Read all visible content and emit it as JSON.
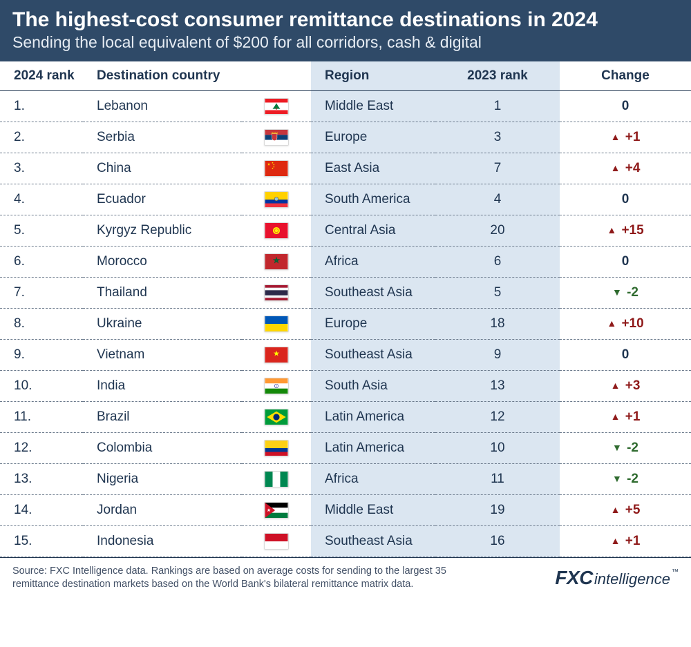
{
  "header": {
    "title": "The highest-cost consumer remittance destinations in 2024",
    "subtitle": "Sending the local equivalent of $200 for all corridors, cash & digital"
  },
  "columns": {
    "rank24": "2024 rank",
    "country": "Destination country",
    "region": "Region",
    "rank23": "2023 rank",
    "change": "Change"
  },
  "change_style": {
    "up_color": "#8f1a1a",
    "down_color": "#2f6b2f",
    "zero_color": "#1f3550",
    "up_symbol": "▲",
    "down_symbol": "▼"
  },
  "highlight": {
    "column": "rank23",
    "bg": "rgba(184,205,227,0.5)"
  },
  "rows": [
    {
      "rank24": "1.",
      "country": "Lebanon",
      "flag_svg": "<svg viewBox='0 0 36 24'><rect width='36' height='24' fill='#fff'/><rect width='36' height='6' fill='#ed1c24'/><rect y='18' width='36' height='6' fill='#ed1c24'/><path d='M18 7 L21 12 L24 16 L12 16 L15 12 Z' fill='#007a3d'/><rect x='17' y='14' width='2' height='3' fill='#7b4b2a'/></svg>",
      "region": "Middle East",
      "rank23": "1",
      "change": {
        "dir": "zero",
        "text": "0"
      }
    },
    {
      "rank24": "2.",
      "country": "Serbia",
      "flag_svg": "<svg viewBox='0 0 36 24'><rect width='36' height='8' fill='#c6363c'/><rect y='8' width='36' height='8' fill='#0c4076'/><rect y='16' width='36' height='8' fill='#fff'/><g transform='translate(11,6)'><path d='M0 0h8v7a4 4 0 01-8 0z' fill='#c6363c' stroke='#fff' stroke-width='0.5'/><path d='M-1 -1l2 -1 2 1 2 -1 2 1 2 -1v2h-10z' fill='#f7c600'/></g></svg>",
      "region": "Europe",
      "rank23": "3",
      "change": {
        "dir": "up",
        "text": "+1"
      }
    },
    {
      "rank24": "3.",
      "country": "China",
      "flag_svg": "<svg viewBox='0 0 36 24'><rect width='36' height='24' fill='#de2910'/><polygon points='6,3 7.4,7.3 3.7,4.6 8.3,4.6 4.6,7.3' fill='#ffde00'/><circle cx='12' cy='3' r='0.9' fill='#ffde00'/><circle cx='14' cy='6' r='0.9' fill='#ffde00'/><circle cx='14' cy='9.5' r='0.9' fill='#ffde00'/><circle cx='12' cy='12' r='0.9' fill='#ffde00'/></svg>",
      "region": "East Asia",
      "rank23": "7",
      "change": {
        "dir": "up",
        "text": "+4"
      }
    },
    {
      "rank24": "4.",
      "country": "Ecuador",
      "flag_svg": "<svg viewBox='0 0 36 24'><rect width='36' height='12' fill='#ffd100'/><rect y='12' width='36' height='6' fill='#0033a0'/><rect y='18' width='36' height='6' fill='#ef3340'/><circle cx='18' cy='11' r='3' fill='#8ec6e6' stroke='#7b5c20' stroke-width='0.7'/></svg>",
      "region": "South America",
      "rank23": "4",
      "change": {
        "dir": "zero",
        "text": "0"
      }
    },
    {
      "rank24": "5.",
      "country": "Kyrgyz Republic",
      "flag_svg": "<svg viewBox='0 0 36 24'><rect width='36' height='24' fill='#e8112d'/><circle cx='18' cy='12' r='5.5' fill='#ffef00'/><circle cx='18' cy='12' r='3.2' fill='#e8112d'/><circle cx='18' cy='12' r='2.6' fill='#ffef00'/></svg>",
      "region": "Central Asia",
      "rank23": "20",
      "change": {
        "dir": "up",
        "text": "+15"
      }
    },
    {
      "rank24": "6.",
      "country": "Morocco",
      "flag_svg": "<svg viewBox='0 0 36 24'><rect width='36' height='24' fill='#c1272d'/><polygon points='18,6 20.3,13 14.3,8.7 21.7,8.7 15.7,13' fill='none' stroke='#006233' stroke-width='1.4'/></svg>",
      "region": "Africa",
      "rank23": "6",
      "change": {
        "dir": "zero",
        "text": "0"
      }
    },
    {
      "rank24": "7.",
      "country": "Thailand",
      "flag_svg": "<svg viewBox='0 0 36 24'><rect width='36' height='24' fill='#a51931'/><rect y='4' width='36' height='16' fill='#f4f5f8'/><rect y='8' width='36' height='8' fill='#2d2a4a'/></svg>",
      "region": "Southeast Asia",
      "rank23": "5",
      "change": {
        "dir": "down",
        "text": "-2"
      }
    },
    {
      "rank24": "8.",
      "country": "Ukraine",
      "flag_svg": "<svg viewBox='0 0 36 24'><rect width='36' height='12' fill='#0057b7'/><rect y='12' width='36' height='12' fill='#ffd700'/></svg>",
      "region": "Europe",
      "rank23": "18",
      "change": {
        "dir": "up",
        "text": "+10"
      }
    },
    {
      "rank24": "9.",
      "country": "Vietnam",
      "flag_svg": "<svg viewBox='0 0 36 24'><rect width='36' height='24' fill='#da251d'/><polygon points='18,5 20.8,13.6 13.4,8.3 22.6,8.3 15.2,13.6' fill='#ffff00'/></svg>",
      "region": "Southeast Asia",
      "rank23": "9",
      "change": {
        "dir": "zero",
        "text": "0"
      }
    },
    {
      "rank24": "10.",
      "country": "India",
      "flag_svg": "<svg viewBox='0 0 36 24'><rect width='36' height='8' fill='#ff9933'/><rect y='8' width='36' height='8' fill='#fff'/><rect y='16' width='36' height='8' fill='#138808'/><circle cx='18' cy='12' r='3' fill='none' stroke='#000080' stroke-width='0.6'/><circle cx='18' cy='12' r='0.6' fill='#000080'/></svg>",
      "region": "South Asia",
      "rank23": "13",
      "change": {
        "dir": "up",
        "text": "+3"
      }
    },
    {
      "rank24": "11.",
      "country": "Brazil",
      "flag_svg": "<svg viewBox='0 0 36 24'><rect width='36' height='24' fill='#009b3a'/><polygon points='18,3 33,12 18,21 3,12' fill='#fedf00'/><circle cx='18' cy='12' r='5' fill='#002776'/></svg>",
      "region": "Latin America",
      "rank23": "12",
      "change": {
        "dir": "up",
        "text": "+1"
      }
    },
    {
      "rank24": "12.",
      "country": "Colombia",
      "flag_svg": "<svg viewBox='0 0 36 24'><rect width='36' height='12' fill='#fcd116'/><rect y='12' width='36' height='6' fill='#003893'/><rect y='18' width='36' height='6' fill='#ce1126'/></svg>",
      "region": "Latin America",
      "rank23": "10",
      "change": {
        "dir": "down",
        "text": "-2"
      }
    },
    {
      "rank24": "13.",
      "country": "Nigeria",
      "flag_svg": "<svg viewBox='0 0 36 24'><rect width='12' height='24' fill='#008751'/><rect x='12' width='12' height='24' fill='#fff'/><rect x='24' width='12' height='24' fill='#008751'/></svg>",
      "region": "Africa",
      "rank23": "11",
      "change": {
        "dir": "down",
        "text": "-2"
      }
    },
    {
      "rank24": "14.",
      "country": "Jordan",
      "flag_svg": "<svg viewBox='0 0 36 24'><rect width='36' height='8' fill='#000'/><rect y='8' width='36' height='8' fill='#fff'/><rect y='16' width='36' height='8' fill='#007a3d'/><polygon points='0,0 16,12 0,24' fill='#ce1126'/><polygon points='6,9 7,11 9,11 7.3,12.3 8,14.4 6,13 4,14.4 4.7,12.3 3,11 5,11' fill='#fff'/></svg>",
      "region": "Middle East",
      "rank23": "19",
      "change": {
        "dir": "up",
        "text": "+5"
      }
    },
    {
      "rank24": "15.",
      "country": "Indonesia",
      "flag_svg": "<svg viewBox='0 0 36 24'><rect width='36' height='12' fill='#ce1126'/><rect y='12' width='36' height='12' fill='#fff'/></svg>",
      "region": "Southeast Asia",
      "rank23": "16",
      "change": {
        "dir": "up",
        "text": "+1"
      }
    }
  ],
  "footer": {
    "source": "Source: FXC Intelligence data. Rankings are based on average costs for sending to the largest 35 remittance destination markets based on the World Bank's bilateral remittance matrix data.",
    "logo_primary": "FXC",
    "logo_secondary": "intelligence",
    "logo_tm": "™"
  }
}
